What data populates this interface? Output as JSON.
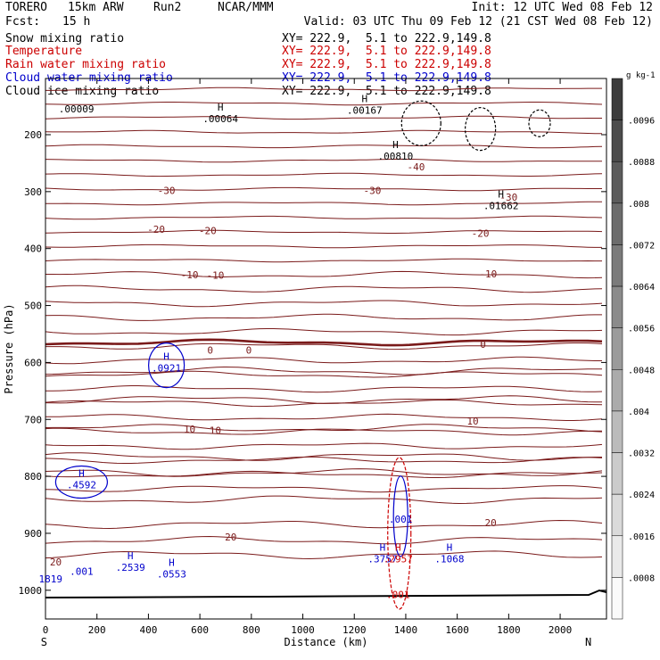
{
  "header": {
    "model": "TORERO",
    "resolution": "15km ARW",
    "run": "Run2",
    "org": "NCAR/MMM",
    "init": "Init: 12 UTC Wed 08 Feb 12",
    "fcst_label": "Fcst:",
    "fcst_value": "15 h",
    "valid": "Valid: 03 UTC Thu 09 Feb 12 (21 CST Wed 08 Feb 12)"
  },
  "legend": [
    {
      "field": "Snow mixing ratio",
      "xy": "XY= 222.9,  5.1 to 222.9,149.8",
      "color": "#000000"
    },
    {
      "field": "Temperature",
      "xy": "XY= 222.9,  5.1 to 222.9,149.8",
      "color": "#cc0000"
    },
    {
      "field": "Rain water mixing ratio",
      "xy": "XY= 222.9,  5.1 to 222.9,149.8",
      "color": "#cc0000"
    },
    {
      "field": "Cloud water mixing ratio",
      "xy": "XY= 222.9,  5.1 to 222.9,149.8",
      "color": "#0000cc"
    },
    {
      "field": "Cloud ice mixing ratio",
      "xy": "XY= 222.9,  5.1 to 222.9,149.8",
      "color": "#000000"
    }
  ],
  "chart_data": {
    "type": "cross-section contour",
    "title": "Vertical cross section S-N",
    "xlabel": "Distance (km)",
    "ylabel": "Pressure (hPa)",
    "xlim": [
      0,
      2180
    ],
    "ylim": [
      1050,
      100
    ],
    "x_ticks": [
      0,
      200,
      400,
      600,
      800,
      1000,
      1200,
      1400,
      1600,
      1800,
      2000
    ],
    "y_ticks": [
      200,
      300,
      400,
      500,
      600,
      700,
      800,
      900,
      1000
    ],
    "end_labels": {
      "left": "S",
      "right": "N"
    },
    "temperature_levels": [
      {
        "value": "-30",
        "labels": [
          {
            "x": 470,
            "p": 298
          },
          {
            "x": 1270,
            "p": 298
          },
          {
            "x": 1800,
            "p": 310
          }
        ]
      },
      {
        "value": "-20",
        "labels": [
          {
            "x": 430,
            "p": 366
          },
          {
            "x": 630,
            "p": 368
          },
          {
            "x": 1690,
            "p": 373
          }
        ]
      },
      {
        "value": "-10",
        "labels": [
          {
            "x": 560,
            "p": 446
          },
          {
            "x": 660,
            "p": 447
          },
          {
            "x": 1720,
            "p": 444
          }
        ]
      },
      {
        "value": "0",
        "labels": [
          {
            "x": 640,
            "p": 578
          },
          {
            "x": 790,
            "p": 578
          },
          {
            "x": 1700,
            "p": 568
          }
        ]
      },
      {
        "value": "10",
        "labels": [
          {
            "x": 560,
            "p": 717
          },
          {
            "x": 660,
            "p": 719
          },
          {
            "x": 1660,
            "p": 703
          }
        ]
      },
      {
        "value": "20",
        "labels": [
          {
            "x": 40,
            "p": 950
          },
          {
            "x": 720,
            "p": 906
          },
          {
            "x": 1730,
            "p": 881
          }
        ]
      },
      {
        "value": "-40",
        "labels": [
          {
            "x": 1440,
            "p": 256
          }
        ]
      }
    ],
    "cloud_water_maxima": [
      {
        "label": "H",
        "value": ".0921",
        "x": 470,
        "p": 605
      },
      {
        "label": "H",
        "value": ".4592",
        "x": 140,
        "p": 810
      },
      {
        "label": "H",
        "value": ".2539",
        "x": 330,
        "p": 955
      },
      {
        "label": "H",
        "value": ".0553",
        "x": 490,
        "p": 967
      },
      {
        "label": "H",
        "value": ".3757",
        "x": 1310,
        "p": 940
      },
      {
        "label": "H",
        "value": ".1068",
        "x": 1570,
        "p": 940
      },
      {
        "label": "",
        "value": ".001",
        "x": 140,
        "p": 962
      },
      {
        "label": "",
        "value": ".001",
        "x": 1380,
        "p": 870
      },
      {
        "label": "",
        "value": "1819",
        "x": 20,
        "p": 975
      }
    ],
    "rain_water_maxima": [
      {
        "label": "H",
        "value": ".2957",
        "x": 1370,
        "p": 940
      },
      {
        "label": "",
        "value": ".001",
        "x": 1370,
        "p": 1003
      }
    ],
    "snow_maxima": [
      {
        "label": "H",
        "value": ".00064",
        "x": 680,
        "p": 167
      },
      {
        "label": "H",
        "value": ".00810",
        "x": 1360,
        "p": 233
      },
      {
        "label": "H",
        "value": ".01662",
        "x": 1770,
        "p": 320
      },
      {
        "label": "",
        "value": ".00009",
        "x": 120,
        "p": 150
      },
      {
        "label": "H",
        "value": ".00167",
        "x": 1240,
        "p": 152
      }
    ],
    "colorbar": {
      "units": "g kg-1",
      "labels": [
        ".0096",
        ".0088",
        ".008",
        ".0072",
        ".0064",
        ".0056",
        ".0048",
        ".004",
        ".0032",
        ".0024",
        ".0016",
        ".0008"
      ]
    }
  }
}
